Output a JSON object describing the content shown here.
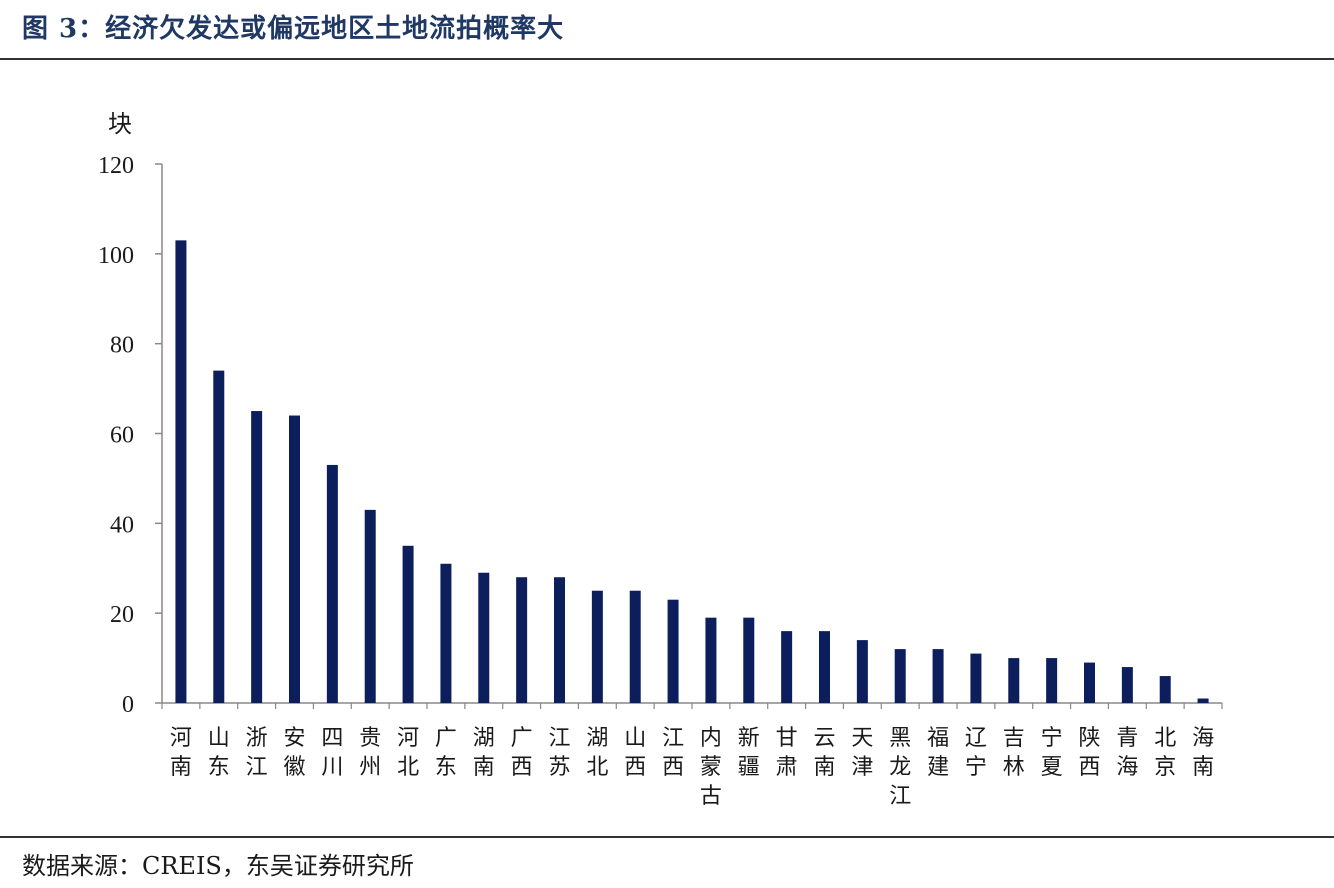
{
  "title": "图 3：经济欠发达或偏远地区土地流拍概率大",
  "source": "数据来源：CREIS，东吴证券研究所",
  "colors": {
    "bar": "#0c1f5c",
    "axis": "#888888",
    "title": "#1f3864"
  },
  "chart_data": {
    "type": "bar",
    "ylabel": "块",
    "ylim": [
      0,
      120
    ],
    "yticks": [
      0,
      20,
      40,
      60,
      80,
      100,
      120
    ],
    "categories": [
      "河南",
      "山东",
      "浙江",
      "安徽",
      "四川",
      "贵州",
      "河北",
      "广东",
      "湖南",
      "广西",
      "江苏",
      "湖北",
      "山西",
      "江西",
      "内蒙古",
      "新疆",
      "甘肃",
      "云南",
      "天津",
      "黑龙江",
      "福建",
      "辽宁",
      "吉林",
      "宁夏",
      "陕西",
      "青海",
      "北京",
      "海南"
    ],
    "values": [
      103,
      74,
      65,
      64,
      53,
      43,
      35,
      31,
      29,
      28,
      28,
      25,
      25,
      23,
      19,
      19,
      16,
      16,
      14,
      12,
      12,
      11,
      10,
      10,
      9,
      8,
      6,
      1
    ]
  }
}
